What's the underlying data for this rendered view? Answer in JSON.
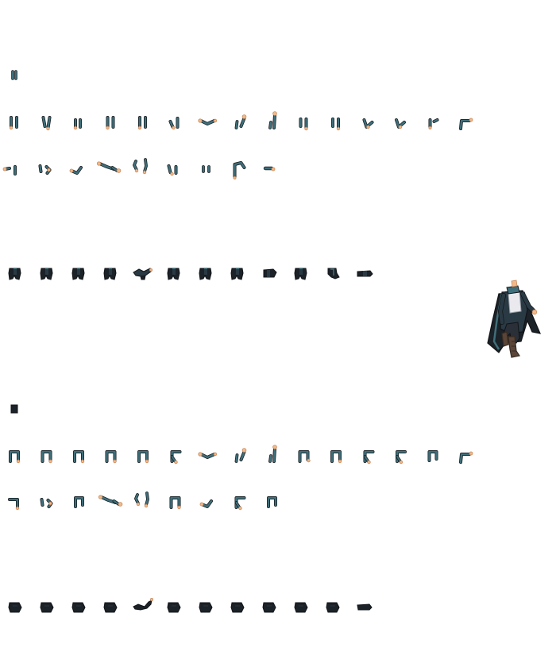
{
  "sheet": {
    "background": "#ffffff",
    "palette": {
      "coat": "#2a3a44",
      "coat_dark": "#1b2228",
      "coat_teal": "#3f6f7a",
      "shirt": "#e9e9ee",
      "pants": "#2b2f38",
      "skin": "#f2b98a",
      "skin_dark": "#c98a5c",
      "boot": "#5a4538",
      "boot_dark": "#3a2c23",
      "outline": "#111418"
    },
    "groups": [
      {
        "name": "arm-sleeve-frames-top",
        "rows": [
          {
            "name": "row-1",
            "frames": [
              "arm-stub"
            ]
          },
          {
            "name": "row-2",
            "frames": [
              "arm-down",
              "arm-down-bent",
              "arm-down-open",
              "arm-down",
              "arm-down",
              "arm-bent-in",
              "arm-forward-reach",
              "arm-raise",
              "arm-raise-high",
              "arm-down-pair",
              "arm-down-pair",
              "arm-bent-hand",
              "arm-bent-hand",
              "arm-short-hand",
              "arm-swing"
            ]
          },
          {
            "name": "row-3",
            "frames": [
              "arm-swing-low",
              "arm-fold",
              "arm-fold-low",
              "arm-stretch-long",
              "arm-pair-raise",
              "arm-fold-tuck",
              "arm-stub-pair",
              "arm-hook",
              "arm-fold-flat"
            ]
          }
        ]
      },
      {
        "name": "torso-frames",
        "rows": [
          {
            "name": "row-4",
            "frames": [
              "torso",
              "torso",
              "torso",
              "torso",
              "torso-lean",
              "torso",
              "torso",
              "torso",
              "torso-side",
              "torso",
              "torso-turn",
              "torso-flat"
            ]
          }
        ]
      },
      {
        "name": "full-character",
        "rows": [
          {
            "name": "character",
            "frames": [
              "character-coat-standing"
            ]
          }
        ]
      },
      {
        "name": "arm-frames-bottom",
        "rows": [
          {
            "name": "row-5",
            "frames": [
              "arm-block"
            ]
          },
          {
            "name": "row-6",
            "frames": [
              "arm-bracket",
              "arm-bracket",
              "arm-bracket",
              "arm-bracket",
              "arm-bracket",
              "arm-bracket-hand",
              "arm-forward-reach",
              "arm-raise",
              "arm-raise-high",
              "arm-bracket-pair",
              "arm-bracket",
              "arm-bracket-hand",
              "arm-bracket-hand",
              "arm-bracket-short",
              "arm-swing"
            ]
          },
          {
            "name": "row-7",
            "frames": [
              "arm-bracket-low",
              "arm-fold",
              "arm-bracket-short",
              "arm-stretch-long",
              "arm-pair-raise",
              "arm-bracket",
              "arm-fold-low",
              "arm-bracket-hand",
              "arm-bracket-short"
            ]
          }
        ]
      },
      {
        "name": "hand-frames",
        "rows": [
          {
            "name": "row-8",
            "frames": [
              "hand",
              "hand",
              "hand",
              "hand",
              "hand-raise",
              "hand",
              "hand",
              "hand",
              "hand",
              "hand",
              "hand",
              "hand-flat"
            ]
          }
        ]
      }
    ]
  }
}
